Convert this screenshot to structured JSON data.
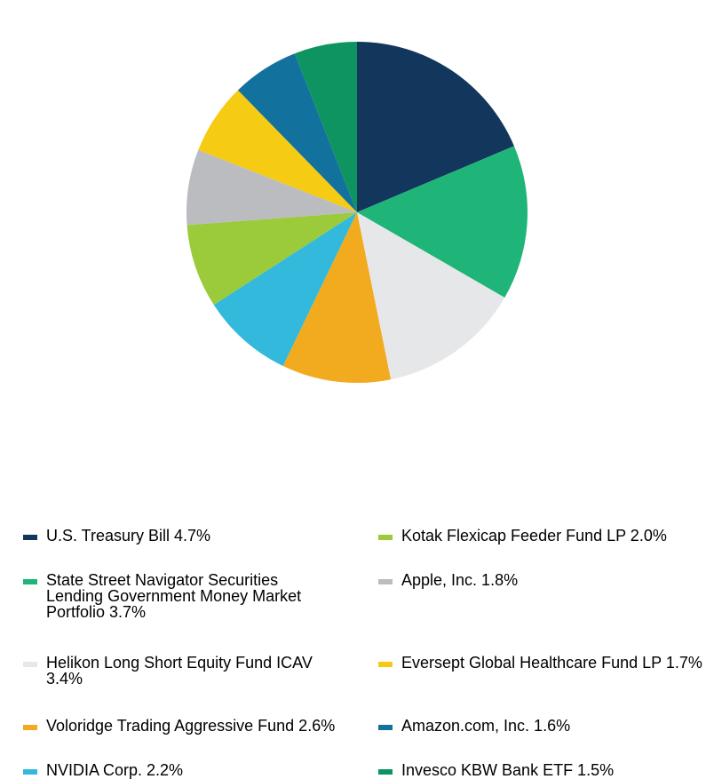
{
  "chart_data": {
    "type": "pie",
    "start_angle_deg": 0,
    "direction": "clockwise",
    "slices": [
      {
        "label": "U.S. Treasury Bill 4.7%",
        "value": 4.7,
        "color": "#13375C"
      },
      {
        "label": "State Street Navigator Securities Lending Government Money Market Portfolio 3.7%",
        "value": 3.7,
        "color": "#1FB478"
      },
      {
        "label": "Helikon Long Short Equity Fund ICAV 3.4%",
        "value": 3.4,
        "color": "#E6E7E8"
      },
      {
        "label": "Voloridge Trading Aggressive Fund 2.6%",
        "value": 2.6,
        "color": "#F2AA1F"
      },
      {
        "label": "NVIDIA Corp. 2.2%",
        "value": 2.2,
        "color": "#33B9DB"
      },
      {
        "label": "Kotak Flexicap Feeder Fund LP 2.0%",
        "value": 2.0,
        "color": "#9BCB3B"
      },
      {
        "label": "Apple, Inc. 1.8%",
        "value": 1.8,
        "color": "#BBBCBF"
      },
      {
        "label": "Eversept Global Healthcare Fund LP 1.7%",
        "value": 1.7,
        "color": "#F5CB14"
      },
      {
        "label": "Amazon.com, Inc. 1.6%",
        "value": 1.6,
        "color": "#13729D"
      },
      {
        "label": "Invesco KBW Bank ETF 1.5%",
        "value": 1.5,
        "color": "#0D9460"
      }
    ],
    "legend": {
      "placement": "bottom",
      "columns": 2
    },
    "legend_lines": [
      [
        "U.S. Treasury Bill 4.7%"
      ],
      [
        "State Street Navigator Securities",
        "Lending Government Money Market",
        "Portfolio 3.7%"
      ],
      [
        "Helikon Long Short Equity Fund ICAV",
        "3.4%"
      ],
      [
        "Voloridge Trading Aggressive Fund 2.6%"
      ],
      [
        "NVIDIA Corp. 2.2%"
      ],
      [
        "Kotak Flexicap Feeder Fund LP 2.0%"
      ],
      [
        "Apple, Inc. 1.8%"
      ],
      [
        "Eversept Global Healthcare Fund LP 1.7%"
      ],
      [
        "Amazon.com, Inc. 1.6%"
      ],
      [
        "Invesco KBW Bank ETF 1.5%"
      ]
    ]
  }
}
